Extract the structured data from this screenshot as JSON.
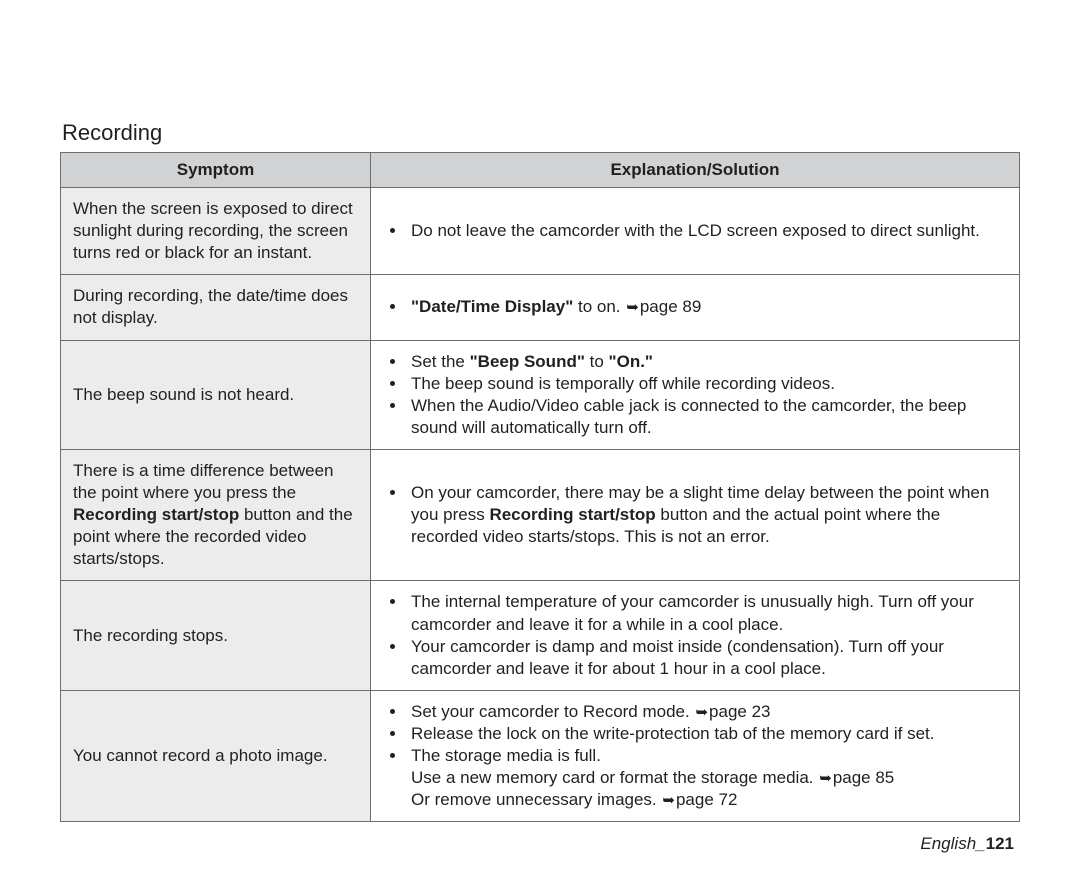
{
  "section_title": "Recording",
  "headers": {
    "symptom": "Symptom",
    "solution": "Explanation/Solution"
  },
  "rows": [
    {
      "symptom_html": "When the screen is exposed to direct sunlight during recording, the screen turns red or black for an instant.",
      "solutions": [
        "Do not leave the camcorder with the LCD screen exposed to direct sunlight."
      ]
    },
    {
      "symptom_html": "During recording, the date/time does not display.",
      "solutions": [
        "<b>\"Date/Time Display\"</b> to on. <span class=\"arrow\">➥</span>page 89"
      ]
    },
    {
      "symptom_html": "The beep sound is not heard.",
      "solutions": [
        "Set the <b>\"Beep Sound\"</b> to <b>\"On.\"</b>",
        "The beep sound is temporally off while recording videos.",
        "When the Audio/Video cable jack is connected to the camcorder, the beep sound will automatically turn off."
      ]
    },
    {
      "symptom_html": "There is a time difference between the point where you press the <b>Recording start/stop</b> button and the point where the recorded video starts/stops.",
      "solutions": [
        "On your camcorder, there may be a slight time delay between the point when you press <b>Recording start/stop</b> button and the actual point where the recorded video starts/stops. This is not an error."
      ]
    },
    {
      "symptom_html": "The recording stops.",
      "solutions": [
        "The internal temperature of your camcorder is unusually high. Turn off your camcorder and leave it for a while in a cool place.",
        "Your camcorder is damp and moist inside (condensation). Turn off your camcorder and leave it for about 1 hour in a cool place."
      ]
    },
    {
      "symptom_html": "You cannot record a photo image.",
      "solutions": [
        "Set your camcorder to Record mode. <span class=\"arrow\">➥</span>page 23",
        "Release the lock on the write-protection tab of the memory card if set.",
        "The storage media is full.<br>Use a new memory card or format the storage media. <span class=\"arrow\">➥</span>page 85<br>Or remove unnecessary images. <span class=\"arrow\">➥</span>page 72"
      ]
    }
  ],
  "footer": {
    "lang": "English",
    "sep": "_",
    "page": "121"
  },
  "colors": {
    "header_bg": "#d1d2d3",
    "symptom_bg": "#ececed",
    "border": "#6d6e71",
    "text": "#231f20"
  }
}
